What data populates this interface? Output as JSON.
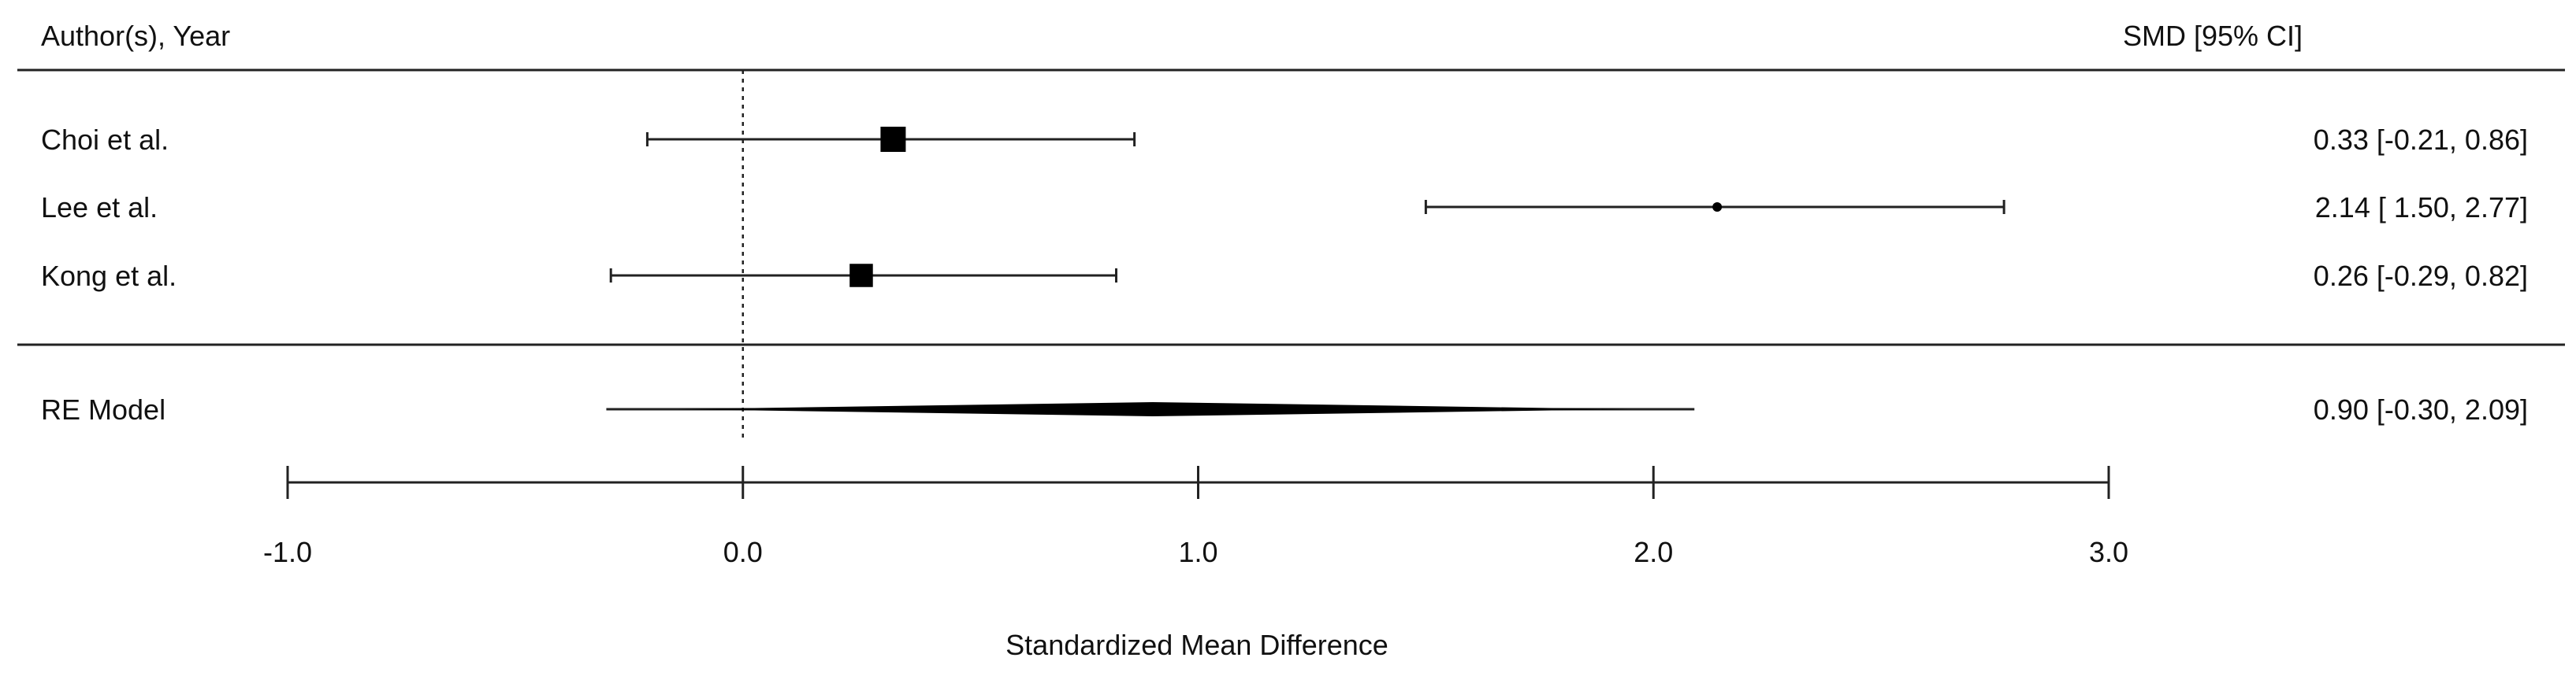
{
  "chart_data": {
    "type": "forest",
    "header": {
      "study_column": "Author(s), Year",
      "estimate_column": "SMD [95% CI]"
    },
    "studies": [
      {
        "label": "Choi et al.",
        "estimate": 0.33,
        "ci_lower": -0.21,
        "ci_upper": 0.86,
        "text": "0.33 [-0.21, 0.86]",
        "marker": "square",
        "relative_weight": 1.0
      },
      {
        "label": "Lee et al.",
        "estimate": 2.14,
        "ci_lower": 1.5,
        "ci_upper": 2.77,
        "text": "2.14 [ 1.50, 2.77]",
        "marker": "dot",
        "relative_weight": 0.25
      },
      {
        "label": "Kong et al.",
        "estimate": 0.26,
        "ci_lower": -0.29,
        "ci_upper": 0.82,
        "text": "0.26 [-0.29, 0.82]",
        "marker": "square",
        "relative_weight": 0.85
      }
    ],
    "summary": {
      "label": "RE Model",
      "estimate": 0.9,
      "ci_lower": -0.3,
      "ci_upper": 2.09,
      "text": "0.90 [-0.30, 2.09]",
      "marker": "diamond"
    },
    "reference_line": 0,
    "xlim": [
      -1.0,
      3.0
    ],
    "xticks": [
      -1.0,
      0.0,
      1.0,
      2.0,
      3.0
    ],
    "xtick_labels": [
      "-1.0",
      "0.0",
      "1.0",
      "2.0",
      "3.0"
    ],
    "xlabel": "Standardized Mean Difference"
  }
}
